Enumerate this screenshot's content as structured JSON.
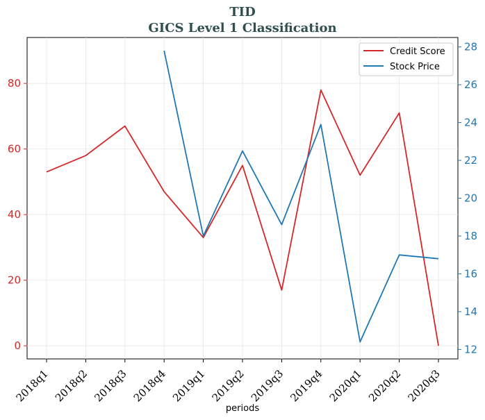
{
  "chart_data": {
    "type": "line",
    "title": "TID",
    "subtitle": "GICS Level 1 Classification",
    "xlabel": "periods",
    "categories": [
      "2018q1",
      "2018q2",
      "2018q3",
      "2018q4",
      "2019q1",
      "2019q2",
      "2019q3",
      "2019q4",
      "2020q1",
      "2020q2",
      "2020q3"
    ],
    "series": [
      {
        "name": "Credit Score",
        "axis": "left",
        "color": "#d62728",
        "values": [
          53,
          58,
          67,
          47,
          33,
          55,
          17,
          78,
          52,
          71,
          0
        ]
      },
      {
        "name": "Stock Price",
        "axis": "right",
        "color": "#1f77b4",
        "values": [
          null,
          null,
          null,
          27.8,
          18.0,
          22.5,
          18.6,
          23.9,
          12.4,
          17.0,
          16.8
        ]
      }
    ],
    "y_left": {
      "ylim": [
        -4,
        94
      ],
      "ticks": [
        0,
        20,
        40,
        60,
        80
      ],
      "color": "#d62728"
    },
    "y_right": {
      "ylim": [
        11.5,
        28.5
      ],
      "ticks": [
        12,
        14,
        16,
        18,
        20,
        22,
        24,
        26,
        28
      ],
      "color": "#1f77b4"
    },
    "grid": true,
    "legend": "top-right"
  }
}
